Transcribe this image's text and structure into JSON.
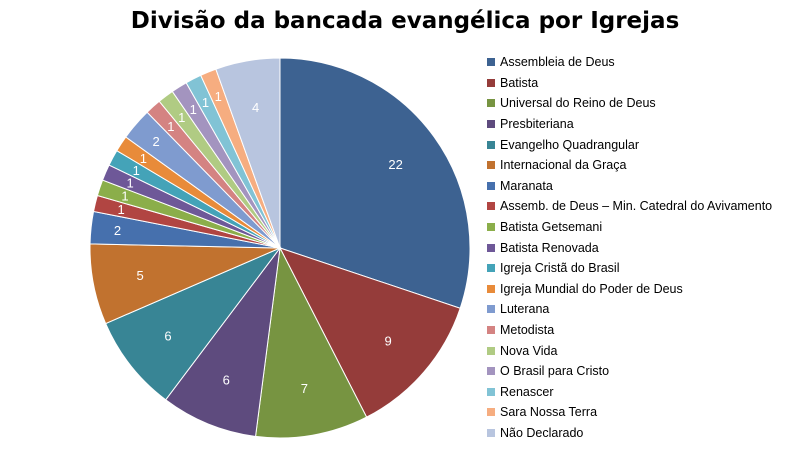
{
  "chart_data": {
    "type": "pie",
    "title": "Divisão da bancada evangélica por Igrejas",
    "legend_position": "right",
    "slices": [
      {
        "label": "Assembleia de Deus",
        "value": 22,
        "color": "#3D6291"
      },
      {
        "label": "Batista",
        "value": 9,
        "color": "#953C3A"
      },
      {
        "label": "Universal do Reino de Deus",
        "value": 7,
        "color": "#779441"
      },
      {
        "label": "Presbiteriana",
        "value": 6,
        "color": "#5E4B7E"
      },
      {
        "label": "Evangelho Quadrangular",
        "value": 6,
        "color": "#388595"
      },
      {
        "label": "Internacional da Graça",
        "value": 5,
        "color": "#C1722F"
      },
      {
        "label": "Maranata",
        "value": 2,
        "color": "#4670AD"
      },
      {
        "label": "Assemb. de Deus – Min. Catedral do Avivamento",
        "value": 1,
        "color": "#B14542"
      },
      {
        "label": "Batista Getsemani",
        "value": 1,
        "color": "#8BAE4A"
      },
      {
        "label": "Batista Renovada",
        "value": 1,
        "color": "#6E5898"
      },
      {
        "label": "Igreja Cristã do Brasil",
        "value": 1,
        "color": "#44A3B8"
      },
      {
        "label": "Igreja Mundial do Poder de Deus",
        "value": 1,
        "color": "#E88B3A"
      },
      {
        "label": "Luterana",
        "value": 2,
        "color": "#7F9BCF"
      },
      {
        "label": "Metodista",
        "value": 1,
        "color": "#D48382"
      },
      {
        "label": "Nova Vida",
        "value": 1,
        "color": "#B0CB83"
      },
      {
        "label": "O Brasil para Cristo",
        "value": 1,
        "color": "#A394BF"
      },
      {
        "label": "Renascer",
        "value": 1,
        "color": "#81C3D5"
      },
      {
        "label": "Sara Nossa Terra",
        "value": 1,
        "color": "#F6AD80"
      },
      {
        "label": "Não Declarado",
        "value": 4,
        "color": "#B8C5DF"
      }
    ]
  }
}
